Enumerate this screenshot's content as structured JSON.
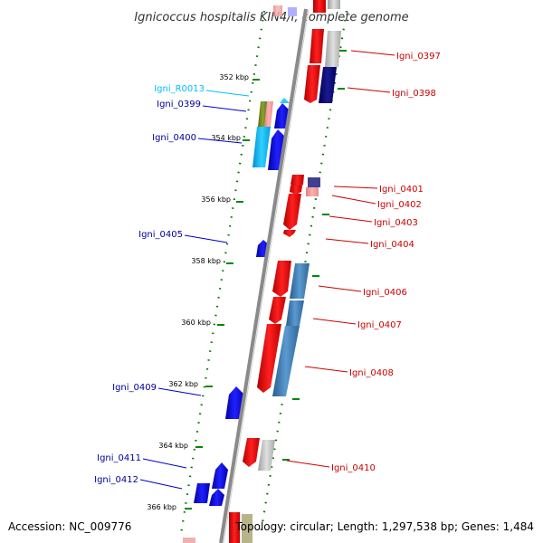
{
  "title": "Ignicoccus hospitalis KIN4/I, complete genome",
  "accession": "Accession: NC_009776",
  "topology": "Topology: circular; Length: 1,297,538 bp; Genes: 1,484",
  "colors": {
    "forward_gene": "#ff0000",
    "reverse_gene": "#0000ff",
    "rna": "#00bfff",
    "forward_label": "#cc0000",
    "reverse_label": "#000099",
    "rna_label": "#00bfff",
    "backbone": "#888888",
    "tick": "#008800"
  },
  "kbp_ticks": [
    "352 kbp",
    "354 kbp",
    "356 kbp",
    "358 kbp",
    "360 kbp",
    "362 kbp",
    "364 kbp",
    "366 kbp"
  ],
  "left_labels": [
    {
      "text": "Igni_R0013",
      "type": "rna"
    },
    {
      "text": "Igni_0399",
      "type": "reverse"
    },
    {
      "text": "Igni_0400",
      "type": "reverse"
    },
    {
      "text": "Igni_0405",
      "type": "reverse"
    },
    {
      "text": "Igni_0409",
      "type": "reverse"
    },
    {
      "text": "Igni_0411",
      "type": "reverse"
    },
    {
      "text": "Igni_0412",
      "type": "reverse"
    }
  ],
  "right_labels": [
    {
      "text": "Igni_0397",
      "type": "forward"
    },
    {
      "text": "Igni_0398",
      "type": "forward"
    },
    {
      "text": "Igni_0401",
      "type": "forward"
    },
    {
      "text": "Igni_0402",
      "type": "forward"
    },
    {
      "text": "Igni_0403",
      "type": "forward"
    },
    {
      "text": "Igni_0404",
      "type": "forward"
    },
    {
      "text": "Igni_0406",
      "type": "forward"
    },
    {
      "text": "Igni_0407",
      "type": "forward"
    },
    {
      "text": "Igni_0408",
      "type": "forward"
    },
    {
      "text": "Igni_0410",
      "type": "forward"
    }
  ]
}
